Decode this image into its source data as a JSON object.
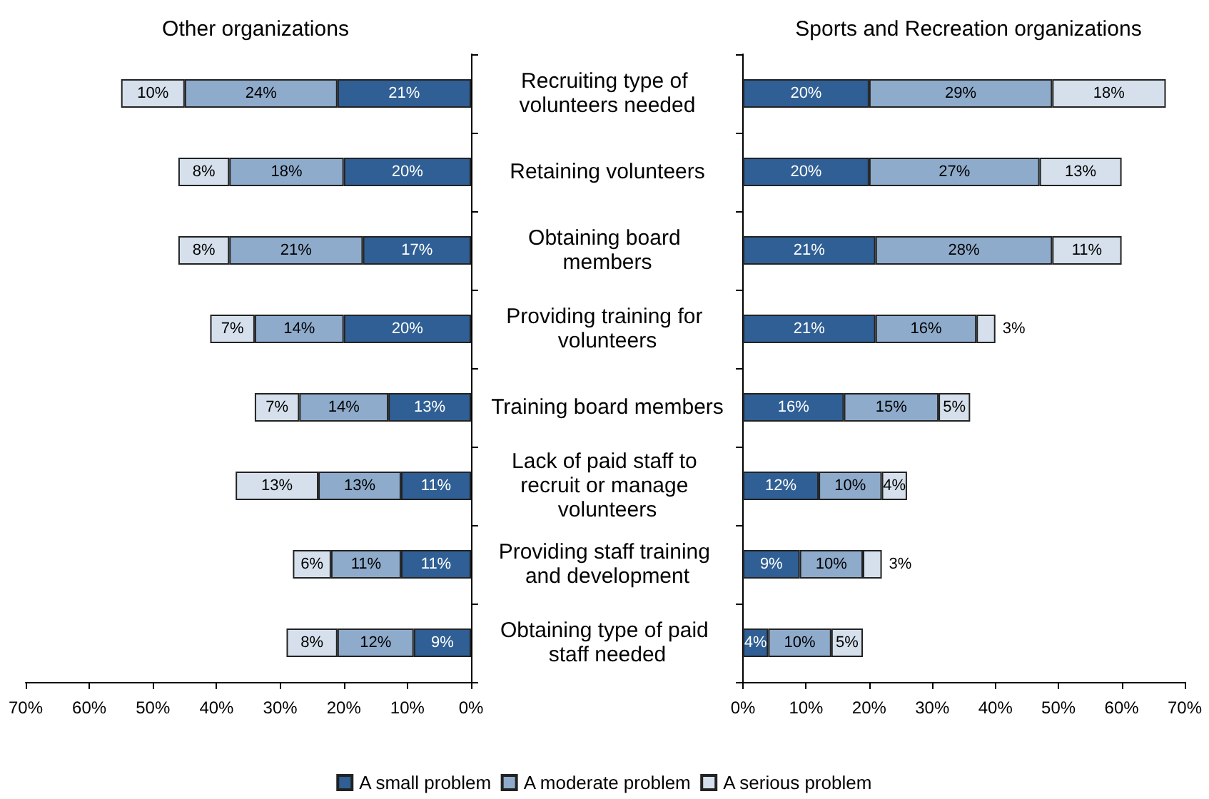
{
  "chart_data": [
    {
      "type": "bar",
      "orientation": "horizontal",
      "stacked": true,
      "title": "Other organizations",
      "categories": [
        "Recruiting type of volunteers needed",
        "Retaining volunteers",
        "Obtaining board members",
        "Providing training for volunteers",
        "Training board members",
        "Lack of paid staff to recruit or manage volunteers",
        "Providing staff training and development",
        "Obtaining type of paid staff needed"
      ],
      "series": [
        {
          "name": "A small problem",
          "color": "#2f5f94",
          "values": [
            21,
            20,
            17,
            20,
            13,
            11,
            11,
            9
          ],
          "value_labels": [
            "21%",
            "20%",
            "17%",
            "20%",
            "13%",
            "11%",
            "11%",
            "9%"
          ]
        },
        {
          "name": "A moderate problem",
          "color": "#8eabcb",
          "values": [
            24,
            18,
            21,
            14,
            14,
            13,
            11,
            12
          ],
          "value_labels": [
            "24%",
            "18%",
            "21%",
            "14%",
            "14%",
            "13%",
            "11%",
            "12%"
          ]
        },
        {
          "name": "A serious problem",
          "color": "#d5e0ec",
          "values": [
            10,
            8,
            8,
            7,
            7,
            13,
            6,
            8
          ],
          "value_labels": [
            "10%",
            "8%",
            "8%",
            "7%",
            "7%",
            "13%",
            "6%",
            "8%"
          ]
        }
      ],
      "xlim": [
        70,
        0
      ],
      "xticks": [
        {
          "value": 70,
          "label": "70%"
        },
        {
          "value": 60,
          "label": "60%"
        },
        {
          "value": 50,
          "label": "50%"
        },
        {
          "value": 40,
          "label": "40%"
        },
        {
          "value": 30,
          "label": "30%"
        },
        {
          "value": 20,
          "label": "20%"
        },
        {
          "value": 10,
          "label": "10%"
        },
        {
          "value": 0,
          "label": "0%"
        }
      ],
      "tick_labels": "x",
      "grid": false,
      "legend": "bottom"
    },
    {
      "type": "bar",
      "orientation": "horizontal",
      "stacked": true,
      "title": "Sports and Recreation organizations",
      "categories": [
        "Recruiting type of volunteers needed",
        "Retaining volunteers",
        "Obtaining board members",
        "Providing training for volunteers",
        "Training board members",
        "Lack of paid staff to recruit or manage volunteers",
        "Providing staff training and development",
        "Obtaining type of paid staff needed"
      ],
      "series": [
        {
          "color": "#2f5f94",
          "values": [
            20,
            20,
            21,
            21,
            16,
            12,
            9,
            4
          ],
          "value_labels": [
            "20%",
            "20%",
            "21%",
            "21%",
            "16%",
            "12%",
            "9%",
            "4%"
          ]
        },
        {
          "color": "#8eabcb",
          "values": [
            29,
            27,
            28,
            16,
            15,
            10,
            10,
            10
          ],
          "value_labels": [
            "29%",
            "27%",
            "28%",
            "16%",
            "15%",
            "10%",
            "10%",
            "10%"
          ]
        },
        {
          "color": "#d5e0ec",
          "values": [
            18,
            13,
            11,
            3,
            5,
            4,
            3,
            5
          ],
          "value_labels": [
            "18%",
            "13%",
            "11%",
            "3%",
            "5%",
            "4%",
            "3%",
            "5%"
          ]
        }
      ],
      "xlim": [
        0,
        70
      ],
      "xticks": [
        {
          "value": 0,
          "label": "0%"
        },
        {
          "value": 10,
          "label": "10%"
        },
        {
          "value": 20,
          "label": "20%"
        },
        {
          "value": 30,
          "label": "30%"
        },
        {
          "value": 40,
          "label": "40%"
        },
        {
          "value": 50,
          "label": "50%"
        },
        {
          "value": 60,
          "label": "60%"
        },
        {
          "value": 70,
          "label": "70%"
        }
      ],
      "grid": false,
      "legend": false
    }
  ]
}
